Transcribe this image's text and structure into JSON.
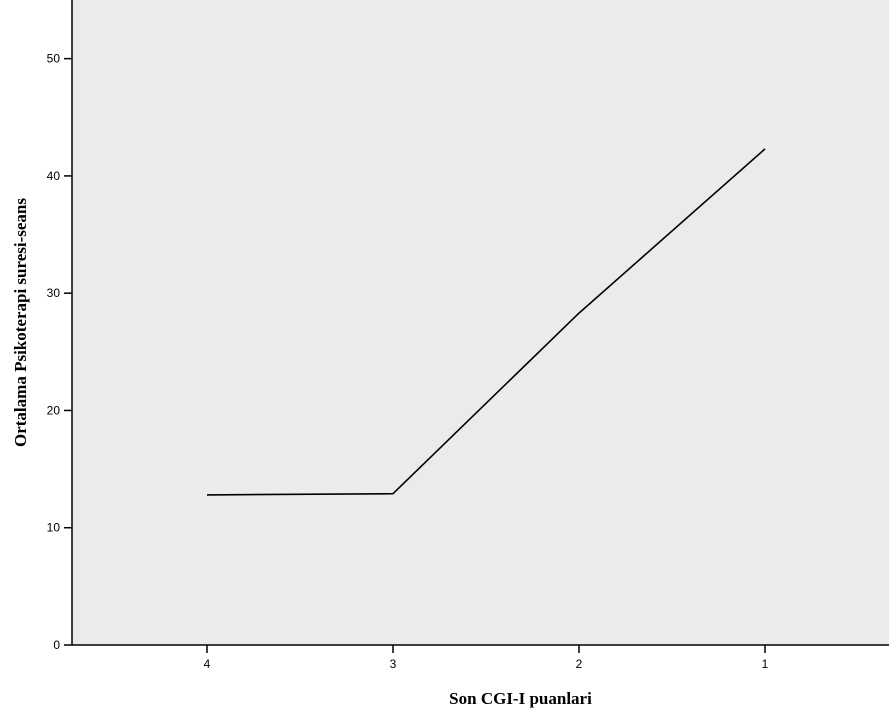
{
  "chart_data": {
    "type": "line",
    "title": "",
    "xlabel": "Son CGI-I puanlari",
    "ylabel": "Ortalama Psikoterapi suresi-seans",
    "x_categories": [
      "4",
      "3",
      "2",
      "1"
    ],
    "series": [
      {
        "values": [
          12.8,
          12.9,
          28.3,
          42.3
        ]
      }
    ],
    "ylim": [
      0,
      55
    ],
    "y_ticks": [
      0,
      10,
      20,
      30,
      40,
      50
    ],
    "grid": false,
    "legend": "none",
    "colors": {
      "plot_background": "#ebebeb",
      "line": "#000000",
      "axis": "#000000",
      "page_background": "#ffffff"
    }
  }
}
